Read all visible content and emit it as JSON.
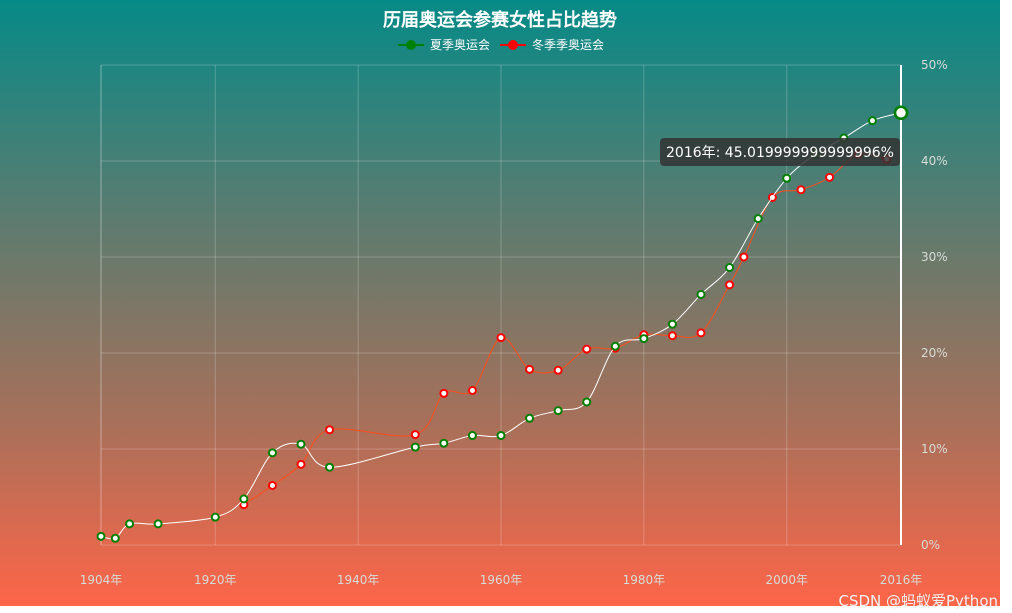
{
  "chart_data": {
    "type": "line",
    "title": "历届奥运会参赛女性占比趋势",
    "legend": {
      "placement": "top-center",
      "entries": [
        "夏季奥运会",
        "冬季季奥运会"
      ]
    },
    "xlim": [
      1904,
      2016
    ],
    "ylim": [
      0,
      50
    ],
    "x_ticks": [
      "1904年",
      "1920年",
      "1940年",
      "1960年",
      "1980年",
      "2000年",
      "2016年"
    ],
    "y_ticks": [
      "0%",
      "10%",
      "20%",
      "30%",
      "40%",
      "50%"
    ],
    "grid": true,
    "series": [
      {
        "name": "夏季奥运会",
        "color": "#ffffff",
        "legend_color": "#008000",
        "x": [
          1904,
          1906,
          1908,
          1912,
          1920,
          1924,
          1928,
          1932,
          1936,
          1948,
          1952,
          1956,
          1960,
          1964,
          1968,
          1972,
          1976,
          1980,
          1984,
          1988,
          1992,
          1996,
          2000,
          2004,
          2008,
          2012,
          2016
        ],
        "y": [
          0.9,
          0.7,
          2.2,
          2.2,
          2.9,
          4.8,
          9.6,
          10.5,
          8.1,
          10.2,
          10.6,
          11.4,
          11.4,
          13.2,
          14.0,
          14.9,
          20.7,
          21.5,
          23.0,
          26.1,
          28.9,
          34.0,
          38.2,
          40.7,
          42.4,
          44.2,
          45.02
        ]
      },
      {
        "name": "冬季季奥运会",
        "color": "#ff4c19",
        "legend_color": "#ff0000",
        "x": [
          1924,
          1928,
          1932,
          1936,
          1948,
          1952,
          1956,
          1960,
          1964,
          1968,
          1972,
          1976,
          1980,
          1984,
          1988,
          1992,
          1994,
          1998,
          2002,
          2006,
          2010,
          2014
        ],
        "y": [
          4.2,
          6.2,
          8.4,
          12.0,
          11.5,
          15.8,
          16.1,
          21.6,
          18.3,
          18.2,
          20.4,
          20.5,
          21.9,
          21.8,
          22.1,
          27.1,
          30.0,
          36.2,
          37.0,
          38.3,
          40.7,
          40.2
        ]
      }
    ],
    "tooltip": "2016年: 45.019999999999996%"
  },
  "watermark": "CSDN @蚂蚁爱Python"
}
